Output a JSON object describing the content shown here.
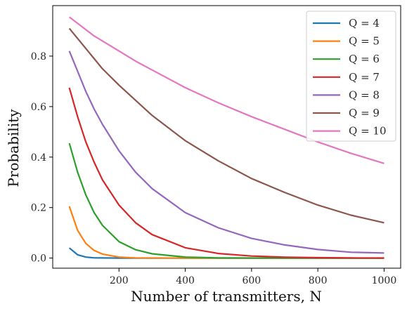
{
  "chart_data": {
    "type": "line",
    "title": "",
    "xlabel": "Number of transmitters, N",
    "ylabel": "Probability",
    "xlim": [
      0,
      1050
    ],
    "ylim": [
      -0.04,
      1.0
    ],
    "xticks": [
      200,
      400,
      600,
      800,
      1000
    ],
    "yticks": [
      0.0,
      0.2,
      0.4,
      0.6,
      0.8
    ],
    "grid": false,
    "legend_position": "top-right",
    "x": [
      50,
      75,
      100,
      125,
      150,
      200,
      250,
      300,
      400,
      500,
      600,
      700,
      800,
      900,
      1000
    ],
    "series": [
      {
        "name": "Q = 4",
        "color": "#1f77b4",
        "values": [
          0.04,
          0.013,
          0.004,
          0.001,
          0.0005,
          0.0,
          0.0,
          0.0,
          0.0,
          0.0,
          0.0,
          0.0,
          0.0,
          0.0,
          0.0
        ]
      },
      {
        "name": "Q = 5",
        "color": "#ff7f0e",
        "values": [
          0.205,
          0.11,
          0.058,
          0.03,
          0.016,
          0.004,
          0.001,
          0.0003,
          0.0,
          0.0,
          0.0,
          0.0,
          0.0,
          0.0,
          0.0
        ]
      },
      {
        "name": "Q = 6",
        "color": "#2ca02c",
        "values": [
          0.455,
          0.34,
          0.25,
          0.18,
          0.13,
          0.065,
          0.033,
          0.017,
          0.004,
          0.001,
          0.0003,
          0.0001,
          0.0,
          0.0,
          0.0
        ]
      },
      {
        "name": "Q = 7",
        "color": "#d62728",
        "values": [
          0.675,
          0.56,
          0.46,
          0.38,
          0.31,
          0.21,
          0.14,
          0.093,
          0.041,
          0.018,
          0.008,
          0.0037,
          0.0016,
          0.0007,
          0.0003
        ]
      },
      {
        "name": "Q = 8",
        "color": "#9467bd",
        "values": [
          0.82,
          0.74,
          0.66,
          0.59,
          0.53,
          0.425,
          0.34,
          0.275,
          0.18,
          0.12,
          0.078,
          0.052,
          0.034,
          0.023,
          0.02
        ]
      },
      {
        "name": "Q = 9",
        "color": "#8c564b",
        "values": [
          0.91,
          0.87,
          0.83,
          0.79,
          0.75,
          0.685,
          0.625,
          0.565,
          0.465,
          0.385,
          0.315,
          0.26,
          0.21,
          0.17,
          0.14
        ]
      },
      {
        "name": "Q = 10",
        "color": "#e377c2",
        "values": [
          0.955,
          0.93,
          0.905,
          0.88,
          0.86,
          0.82,
          0.78,
          0.745,
          0.675,
          0.615,
          0.56,
          0.51,
          0.46,
          0.415,
          0.375
        ]
      }
    ]
  }
}
